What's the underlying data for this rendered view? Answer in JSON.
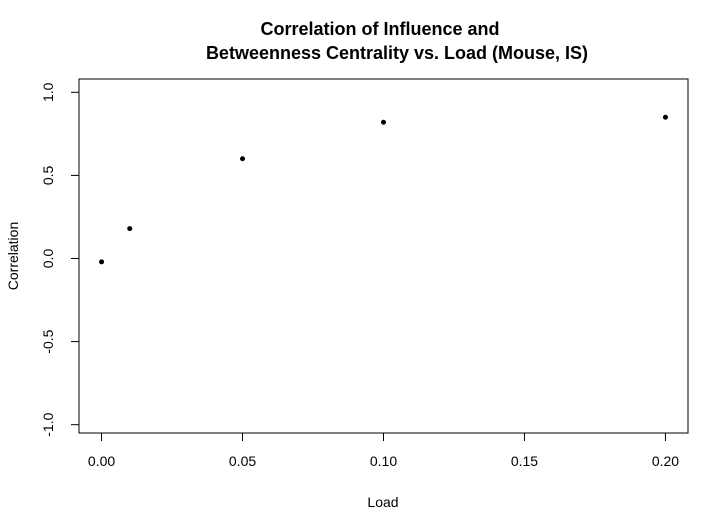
{
  "chart_data": {
    "type": "scatter",
    "title_lines": [
      "Correlation of Influence and",
      "Betweenness Centrality vs. Load (Mouse, IS)"
    ],
    "xlabel": "Load",
    "ylabel": "Correlation",
    "x": [
      0.0,
      0.01,
      0.05,
      0.1,
      0.2
    ],
    "y": [
      -0.02,
      0.18,
      0.6,
      0.82,
      0.85
    ],
    "xlim": [
      -0.008,
      0.208
    ],
    "ylim": [
      -1.05,
      1.08
    ],
    "xticks": [
      0.0,
      0.05,
      0.1,
      0.15,
      0.2
    ],
    "xtick_labels": [
      "0.00",
      "0.05",
      "0.10",
      "0.15",
      "0.20"
    ],
    "yticks": [
      -1.0,
      -0.5,
      0.0,
      0.5,
      1.0
    ],
    "ytick_labels": [
      "-1.0",
      "-0.5",
      "0.0",
      "0.5",
      "1.0"
    ],
    "grid": false,
    "point_color": "#000000"
  }
}
